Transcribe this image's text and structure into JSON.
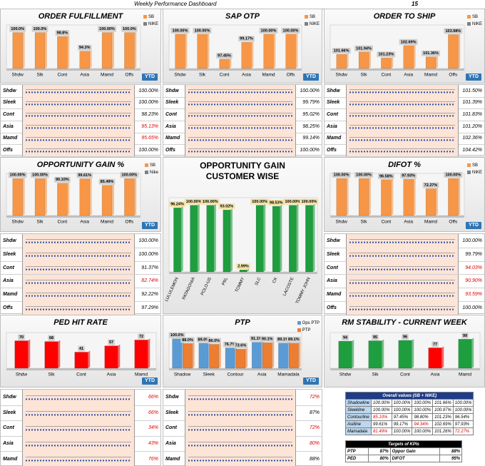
{
  "header": {
    "title": "Weekly Performance Dashboard",
    "week": "15"
  },
  "chart_data": [
    {
      "type": "bar",
      "title": "ORDER FULFILLMENT",
      "legend": "top-right",
      "categories": [
        "Shdw",
        "Slk",
        "Cont",
        "Asia",
        "Mamd",
        "Offs"
      ],
      "series": [
        {
          "name": "SB",
          "color": "#f79646",
          "values": [
            100,
            100,
            98.8,
            94.3,
            100,
            100
          ],
          "value_labels": [
            "100.0%",
            "100.0%",
            "98.8%",
            "94.3%",
            "100.00%",
            "100.0%"
          ]
        },
        {
          "name": "NIKE",
          "color": "#7f7f7f",
          "values": [
            null,
            null,
            null,
            null,
            null,
            null
          ]
        }
      ],
      "ylim": [
        89,
        101
      ],
      "ytd_label": "YTD",
      "ytd_rows": [
        {
          "label": "Shdw",
          "value": "100.00%"
        },
        {
          "label": "Sleek",
          "value": "100.00%"
        },
        {
          "label": "Cont",
          "value": "98.23%"
        },
        {
          "label": "Asia",
          "value": {
            "text": "95.13%",
            "color": "#e00000"
          }
        },
        {
          "label": "Mamd",
          "value": {
            "text": "95.65%",
            "color": "#e00000"
          }
        },
        {
          "label": "Offs",
          "value": "100.00%"
        }
      ]
    },
    {
      "type": "bar",
      "title": "SAP OTP",
      "legend": "top-right",
      "categories": [
        "Shdw",
        "Slk",
        "Cont",
        "Asia",
        "Mamd",
        "Offs"
      ],
      "series": [
        {
          "name": "SB",
          "color": "#f79646",
          "values": [
            100,
            100,
            97.45,
            99.17,
            100,
            100
          ],
          "value_labels": [
            "100.00%",
            "100.00%",
            "97.45%",
            "99.17%",
            "100.00%",
            "100.00%"
          ]
        },
        {
          "name": "NIKE",
          "color": "#7f7f7f",
          "values": [
            null,
            null,
            null,
            null,
            null,
            null
          ]
        }
      ],
      "ylim": [
        96.5,
        100.5
      ],
      "ytd_label": "YTD",
      "ytd_rows": [
        {
          "label": "Shdw",
          "value": "100.00%"
        },
        {
          "label": "Sleek",
          "value": "99.79%"
        },
        {
          "label": "Cont",
          "value": "95.02%"
        },
        {
          "label": "Asia",
          "value": "98.25%"
        },
        {
          "label": "Mamd",
          "value": "99.14%"
        },
        {
          "label": "Offs",
          "value": "100.00%"
        }
      ]
    },
    {
      "type": "bar",
      "title": "ORDER TO SHIP",
      "legend": "top-right",
      "categories": [
        "Shdw",
        "Slk",
        "Cont",
        "Asia",
        "Mamd",
        "Offs"
      ],
      "series": [
        {
          "name": "SB",
          "color": "#f79646",
          "values": [
            101.66,
            101.94,
            101.23,
            102.69,
            101.36,
            103.98
          ],
          "value_labels": [
            "101.66%",
            "101.94%",
            "101.23%",
            "102.69%",
            "101.36%",
            "103.98%"
          ]
        },
        {
          "name": "NIKE",
          "color": "#7f7f7f",
          "values": [
            null,
            null,
            null,
            null,
            null,
            null
          ]
        }
      ],
      "ylim": [
        100,
        104.6
      ],
      "ytd_label": "YTD",
      "ytd_rows": [
        {
          "label": "Shdw",
          "value": "101.50%"
        },
        {
          "label": "Sleek",
          "value": "101.39%"
        },
        {
          "label": "Cont",
          "value": "101.83%"
        },
        {
          "label": "Asia",
          "value": "101.20%"
        },
        {
          "label": "Mamd",
          "value": "102.36%"
        },
        {
          "label": "Offs",
          "value": "104.42%"
        }
      ]
    },
    {
      "type": "bar",
      "title": "OPPORTUNITY GAIN %",
      "legend": "top-right",
      "categories": [
        "Shdw",
        "Slk",
        "Cont",
        "Asia",
        "Mamd",
        "Offs"
      ],
      "series": [
        {
          "name": "SB",
          "color": "#f79646",
          "values": [
            100,
            100,
            90.1,
            99.61,
            85.49,
            100
          ],
          "value_labels": [
            "100.00%",
            "100.00%",
            "90.10%",
            "99.61%",
            "85.49%",
            "100.00%"
          ]
        },
        {
          "name": "Nike",
          "color": "#7f7f7f",
          "values": [
            null,
            null,
            null,
            null,
            null,
            null
          ]
        }
      ],
      "ylim": [
        20,
        102
      ],
      "ytd_label": "YTD",
      "ytd_rows": [
        {
          "label": "Shdw",
          "value": "100.00%"
        },
        {
          "label": "Sleek",
          "value": "100.00%"
        },
        {
          "label": "Cont",
          "value": "91.37%"
        },
        {
          "label": "Asia",
          "value": {
            "text": "82.74%",
            "color": "#e00000"
          }
        },
        {
          "label": "Mamd",
          "value": "92.22%"
        },
        {
          "label": "Offs",
          "value": "97.29%"
        }
      ]
    },
    {
      "type": "bar",
      "title": "OPPORTUNITY GAIN CUSTOMER WISE",
      "categories": [
        "LULULEMON",
        "PATAGONIA",
        "POLO-US",
        "PRL",
        "TOMMY",
        "SLC",
        "CK",
        "LACOSTE",
        "TOMMY JOHN"
      ],
      "series": [
        {
          "name": "SB",
          "color": "#1e9e3e",
          "values": [
            96.24,
            100,
            100,
            93.02,
            2.99,
            100,
            98.53,
            100,
            100
          ],
          "value_labels": [
            "96.24%",
            "100.00%",
            "100.00%",
            "93.02%",
            "2.99%",
            "100.00%",
            "98.53%",
            "100.00%",
            "100.00%"
          ]
        }
      ],
      "ylim": [
        0,
        105
      ]
    },
    {
      "type": "bar",
      "title": "DIFOT %",
      "legend": "top-right",
      "categories": [
        "Shdw",
        "Slk",
        "Cont",
        "Asia",
        "Mamd",
        "Offs"
      ],
      "series": [
        {
          "name": "SB",
          "color": "#f79646",
          "values": [
            100,
            100,
            96.58,
            97.93,
            72.27,
            100
          ],
          "value_labels": [
            "100.00%",
            "100.00%",
            "96.58%",
            "97.93%",
            "72.27%",
            "100.00%"
          ]
        },
        {
          "name": "NIKE",
          "color": "#7f7f7f",
          "values": [
            null,
            null,
            null,
            null,
            null,
            null
          ]
        }
      ],
      "ylim": [
        0,
        102
      ],
      "ytd_label": "YTD",
      "ytd_rows": [
        {
          "label": "Shdw",
          "value": "100.00%"
        },
        {
          "label": "Sleek",
          "value": "99.79%"
        },
        {
          "label": "Cont",
          "value": {
            "text": "94.03%",
            "color": "#e00000"
          }
        },
        {
          "label": "Asia",
          "value": {
            "text": "90.90%",
            "color": "#e00000"
          }
        },
        {
          "label": "Mamd",
          "value": {
            "text": "93.59%",
            "color": "#e00000"
          }
        },
        {
          "label": "Offs",
          "value": "100.00%"
        }
      ]
    },
    {
      "type": "bar",
      "title": "PED HIT RATE",
      "categories": [
        "Shdw",
        "Slk",
        "Cont",
        "Asia",
        "Mamd"
      ],
      "series": [
        {
          "name": "SB",
          "color": "#ff0000",
          "values": [
            70,
            68,
            41,
            57,
            72
          ]
        }
      ],
      "ylim": [
        0,
        80
      ],
      "ytd_label": "YTD",
      "ytd_rows": [
        {
          "label": "Shdw",
          "value": {
            "text": "66%",
            "color": "#e00000"
          }
        },
        {
          "label": "Sleek",
          "value": {
            "text": "66%",
            "color": "#e00000"
          }
        },
        {
          "label": "Cont",
          "value": {
            "text": "34%",
            "color": "#e00000"
          }
        },
        {
          "label": "Asia",
          "value": {
            "text": "43%",
            "color": "#e00000"
          }
        },
        {
          "label": "Mamd",
          "value": {
            "text": "76%",
            "color": "#e00000"
          }
        }
      ]
    },
    {
      "type": "bar",
      "title": "PTP",
      "legend": "top-right",
      "categories": [
        "Shadow",
        "Sleek",
        "Contour",
        "Asia",
        "Mamadala"
      ],
      "series": [
        {
          "name": "Ops PTP",
          "color": "#5b9bd5",
          "values": [
            100,
            89,
            76.7,
            91.1,
            89.1
          ],
          "value_labels": [
            "100.0%",
            "89.0%",
            "76.7%",
            "91.1%",
            "89.1%"
          ]
        },
        {
          "name": "PTP",
          "color": "#ed7d31",
          "values": [
            88,
            86,
            73.6,
            90.1,
            89.1
          ],
          "value_labels": [
            "88.0%",
            "86.0%",
            "73.6%",
            "90.1%",
            "89.1%"
          ]
        }
      ],
      "ylim": [
        25,
        105
      ],
      "ytd_label": "YTD",
      "ytd_rows": [
        {
          "label": "Shdw",
          "value": {
            "text": "72%",
            "color": "#e00000"
          }
        },
        {
          "label": "Sleek",
          "value": "87%"
        },
        {
          "label": "Cont",
          "value": {
            "text": "72%",
            "color": "#e00000"
          }
        },
        {
          "label": "Asia",
          "value": {
            "text": "80%",
            "color": "#e00000"
          }
        },
        {
          "label": "Mamd",
          "value": "88%"
        }
      ]
    },
    {
      "type": "bar",
      "title": "RM STABILITY - CURRENT WEEK",
      "categories": [
        "Shdw",
        "Slk",
        "Cont",
        "Asia",
        "Mamd"
      ],
      "series": [
        {
          "name": "SB",
          "color": "#1e9e3e",
          "colors": [
            "#1e9e3e",
            "#1e9e3e",
            "#1e9e3e",
            "#ff0000",
            "#1e9e3e"
          ],
          "values": [
            94,
            95,
            96,
            77,
            99
          ]
        }
      ],
      "ylim": [
        25,
        105
      ]
    }
  ],
  "overall": {
    "title": "Overall values (SB + NIKE)",
    "rows": [
      [
        "Shadowline",
        "100.00%",
        "100.00%",
        "100.00%",
        "101.66%",
        "100.00%"
      ],
      [
        "Sleekline",
        "100.00%",
        "100.00%",
        "100.00%",
        "100.97%",
        "100.00%"
      ],
      [
        "Contourline",
        {
          "text": "85.10%",
          "color": "#e00000"
        },
        "97.45%",
        "98.80%",
        "101.23%",
        "96.54%"
      ],
      [
        "Asiiline",
        "99.61%",
        "99.17%",
        {
          "text": "94.34%",
          "color": "#e00000"
        },
        "102.69%",
        "97.93%"
      ],
      [
        "Mamadala",
        {
          "text": "81.49%",
          "color": "#e00000"
        },
        "100.00%",
        "100.00%",
        "101.26%",
        {
          "text": "72.27%",
          "color": "#e00000"
        }
      ]
    ]
  },
  "targets": {
    "title": "Targets of KPIs",
    "rows": [
      [
        "PTP",
        "87%",
        "Oppor Gain",
        "88%"
      ],
      [
        "PED",
        "80%",
        "DIFOT",
        "95%"
      ]
    ]
  }
}
